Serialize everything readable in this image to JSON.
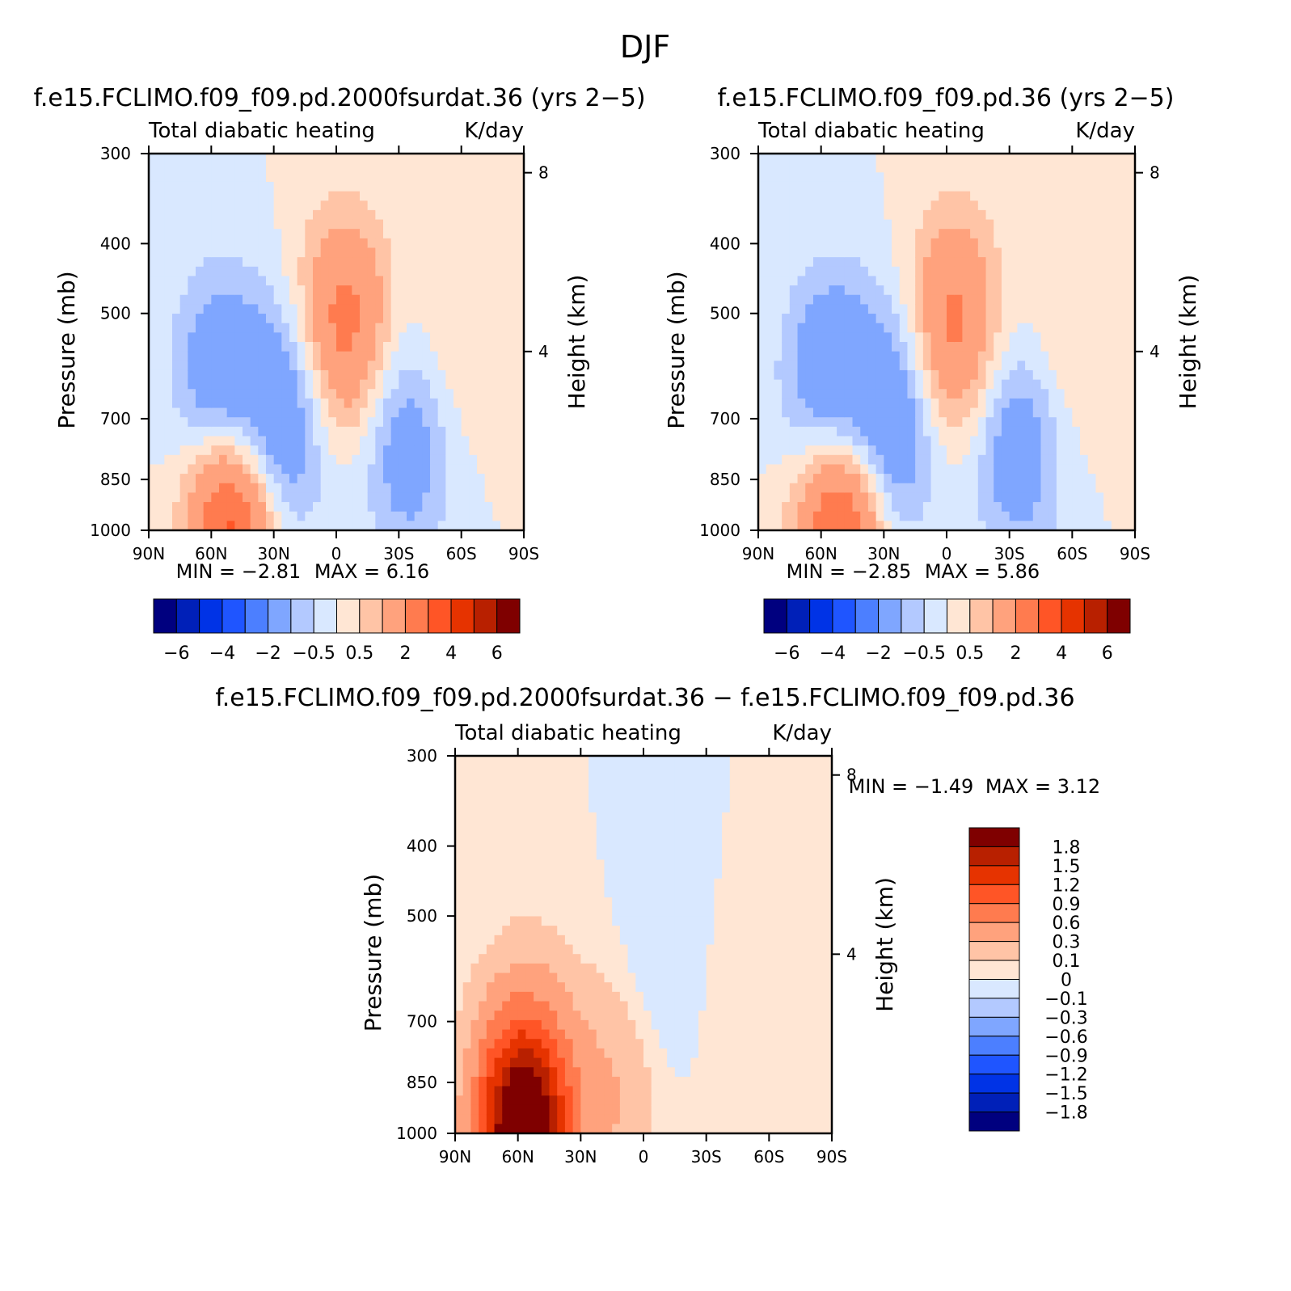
{
  "figure_title": "DJF",
  "colors": {
    "abs": [
      "#00007f",
      "#0020b8",
      "#0033e6",
      "#1f55ff",
      "#4c7fff",
      "#7fa6ff",
      "#b3c9ff",
      "#d9e8ff",
      "#ffe6d4",
      "#ffc4a6",
      "#ffa27d",
      "#ff7b4f",
      "#ff5526",
      "#e63300",
      "#b82000",
      "#7f0000"
    ],
    "diff": [
      "#00007f",
      "#0020b8",
      "#0033e6",
      "#1f55ff",
      "#4c7fff",
      "#7fa6ff",
      "#b3c9ff",
      "#d9e8ff",
      "#ffe6d4",
      "#ffc4a6",
      "#ffa27d",
      "#ff7b4f",
      "#ff5526",
      "#e63300",
      "#b82000",
      "#7f0000"
    ]
  },
  "chart_data": [
    {
      "type": "heatmap",
      "title": "f.e15.FCLIMO.f09_f09.pd.2000fsurdat.36 (yrs 2−5)",
      "left_label": "Total diabatic heating",
      "right_label": "K/day",
      "xlabel": "",
      "ylabel": "Pressure (mb)",
      "ylabel_right": "Height (km)",
      "x_ticks": [
        "90N",
        "60N",
        "30N",
        "0",
        "30S",
        "60S",
        "90S"
      ],
      "y_ticks": [
        "300",
        "400",
        "500",
        "700",
        "850",
        "1000"
      ],
      "y_ticks_right": [
        "8",
        "4"
      ],
      "ylim": [
        1000,
        300
      ],
      "min_label": "MIN =",
      "min": "−2.81",
      "max_label": "MAX =",
      "max": "6.16",
      "colorbar_labels": [
        "−6",
        "−4",
        "−2",
        "−0.5",
        "0.5",
        "2",
        "4",
        "6"
      ],
      "colorbar_levels": [
        "−7",
        "−6",
        "−5",
        "−4",
        "−3",
        "−2",
        "−1",
        "−0.5",
        "0",
        "0.5",
        "1",
        "2",
        "3",
        "4",
        "5",
        "6",
        "7"
      ],
      "fields": [
        {
          "x": 0.19,
          "p": 640,
          "v": -2.2
        },
        {
          "x": 0.35,
          "p": 720,
          "v": -2.1
        },
        {
          "x": 0.52,
          "p": 520,
          "v": 2.4
        },
        {
          "x": 0.22,
          "p": 950,
          "v": 3.8
        },
        {
          "x": 0.69,
          "p": 760,
          "v": -1.6
        },
        {
          "x": 0.81,
          "p": 560,
          "v": 0.6
        }
      ]
    },
    {
      "type": "heatmap",
      "title": "f.e15.FCLIMO.f09_f09.pd.36 (yrs 2−5)",
      "left_label": "Total diabatic heating",
      "right_label": "K/day",
      "xlabel": "",
      "ylabel": "Pressure (mb)",
      "ylabel_right": "Height (km)",
      "x_ticks": [
        "90N",
        "60N",
        "30N",
        "0",
        "30S",
        "60S",
        "90S"
      ],
      "y_ticks": [
        "300",
        "400",
        "500",
        "700",
        "850",
        "1000"
      ],
      "y_ticks_right": [
        "8",
        "4"
      ],
      "ylim": [
        1000,
        300
      ],
      "min_label": "MIN =",
      "min": "−2.85",
      "max_label": "MAX =",
      "max": "5.86",
      "colorbar_labels": [
        "−6",
        "−4",
        "−2",
        "−0.5",
        "0.5",
        "2",
        "4",
        "6"
      ],
      "colorbar_levels": [
        "−7",
        "−6",
        "−5",
        "−4",
        "−3",
        "−2",
        "−1",
        "−0.5",
        "0",
        "0.5",
        "1",
        "2",
        "3",
        "4",
        "5",
        "6",
        "7"
      ],
      "fields": [
        {
          "x": 0.19,
          "p": 640,
          "v": -2.3
        },
        {
          "x": 0.35,
          "p": 720,
          "v": -2.2
        },
        {
          "x": 0.52,
          "p": 520,
          "v": 2.3
        },
        {
          "x": 0.22,
          "p": 950,
          "v": 3.6
        },
        {
          "x": 0.69,
          "p": 760,
          "v": -1.7
        },
        {
          "x": 0.81,
          "p": 560,
          "v": 0.6
        }
      ]
    },
    {
      "type": "heatmap",
      "title": "f.e15.FCLIMO.f09_f09.pd.2000fsurdat.36 − f.e15.FCLIMO.f09_f09.pd.36",
      "left_label": "Total diabatic heating",
      "right_label": "K/day",
      "xlabel": "",
      "ylabel": "Pressure (mb)",
      "ylabel_right": "Height (km)",
      "x_ticks": [
        "90N",
        "60N",
        "30N",
        "0",
        "30S",
        "60S",
        "90S"
      ],
      "y_ticks": [
        "300",
        "400",
        "500",
        "700",
        "850",
        "1000"
      ],
      "y_ticks_right": [
        "8",
        "4"
      ],
      "ylim": [
        1000,
        300
      ],
      "min_label": "MIN =",
      "min": "−1.49",
      "max_label": "MAX =",
      "max": "3.12",
      "colorbar_labels": [
        "1.8",
        "1.5",
        "1.2",
        "0.9",
        "0.6",
        "0.3",
        "0.1",
        "0",
        "−0.1",
        "−0.3",
        "−0.6",
        "−0.9",
        "−1.2",
        "−1.5",
        "−1.8"
      ],
      "colorbar_levels": [
        "−2.1",
        "−1.8",
        "−1.5",
        "−1.2",
        "−0.9",
        "−0.6",
        "−0.3",
        "−0.1",
        "0",
        "0.1",
        "0.3",
        "0.6",
        "0.9",
        "1.2",
        "1.5",
        "1.8",
        "2.1"
      ],
      "fields": [
        {
          "x": 0.2,
          "p": 700,
          "v": 0.12
        },
        {
          "x": 0.38,
          "p": 800,
          "v": 0.05
        },
        {
          "x": 0.42,
          "p": 900,
          "v": 0.25
        },
        {
          "x": 0.56,
          "p": 600,
          "v": -0.12
        },
        {
          "x": 0.75,
          "p": 700,
          "v": 0.1
        },
        {
          "x": 0.18,
          "p": 995,
          "v": 2.4
        }
      ]
    }
  ]
}
